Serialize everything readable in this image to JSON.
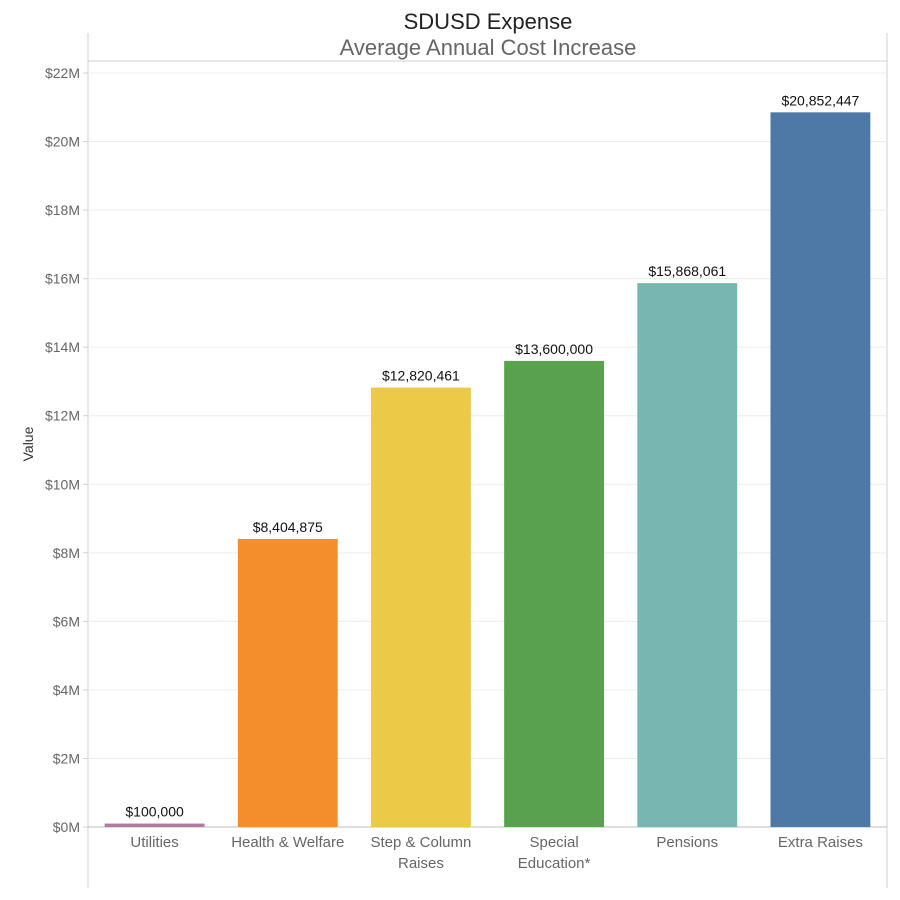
{
  "chart_data": {
    "type": "bar",
    "title": "SDUSD Expense",
    "subtitle": "Average Annual Cost Increase",
    "ylabel": "Value",
    "xlabel": "",
    "ylim": [
      0,
      22000000
    ],
    "yticks": [
      0,
      2000000,
      4000000,
      6000000,
      8000000,
      10000000,
      12000000,
      14000000,
      16000000,
      18000000,
      20000000,
      22000000
    ],
    "ytick_labels": [
      "$0M",
      "$2M",
      "$4M",
      "$6M",
      "$8M",
      "$10M",
      "$12M",
      "$14M",
      "$16M",
      "$18M",
      "$20M",
      "$22M"
    ],
    "grid": true,
    "legend": "none",
    "categories": [
      "Utilities",
      "Health & Welfare",
      "Step & Column Raises",
      "Special Education*",
      "Pensions",
      "Extra Raises"
    ],
    "category_lines": [
      [
        "Utilities"
      ],
      [
        "Health & Welfare"
      ],
      [
        "Step & Column",
        "Raises"
      ],
      [
        "Special",
        "Education*"
      ],
      [
        "Pensions"
      ],
      [
        "Extra Raises"
      ]
    ],
    "values": [
      100000,
      8404875,
      12820461,
      13600000,
      15868061,
      20852447
    ],
    "value_labels": [
      "$100,000",
      "$8,404,875",
      "$12,820,461",
      "$13,600,000",
      "$15,868,061",
      "$20,852,447"
    ],
    "colors": [
      "#b07aa1",
      "#f28e2b",
      "#edc948",
      "#59a14f",
      "#76b7b2",
      "#4e79a7"
    ]
  }
}
